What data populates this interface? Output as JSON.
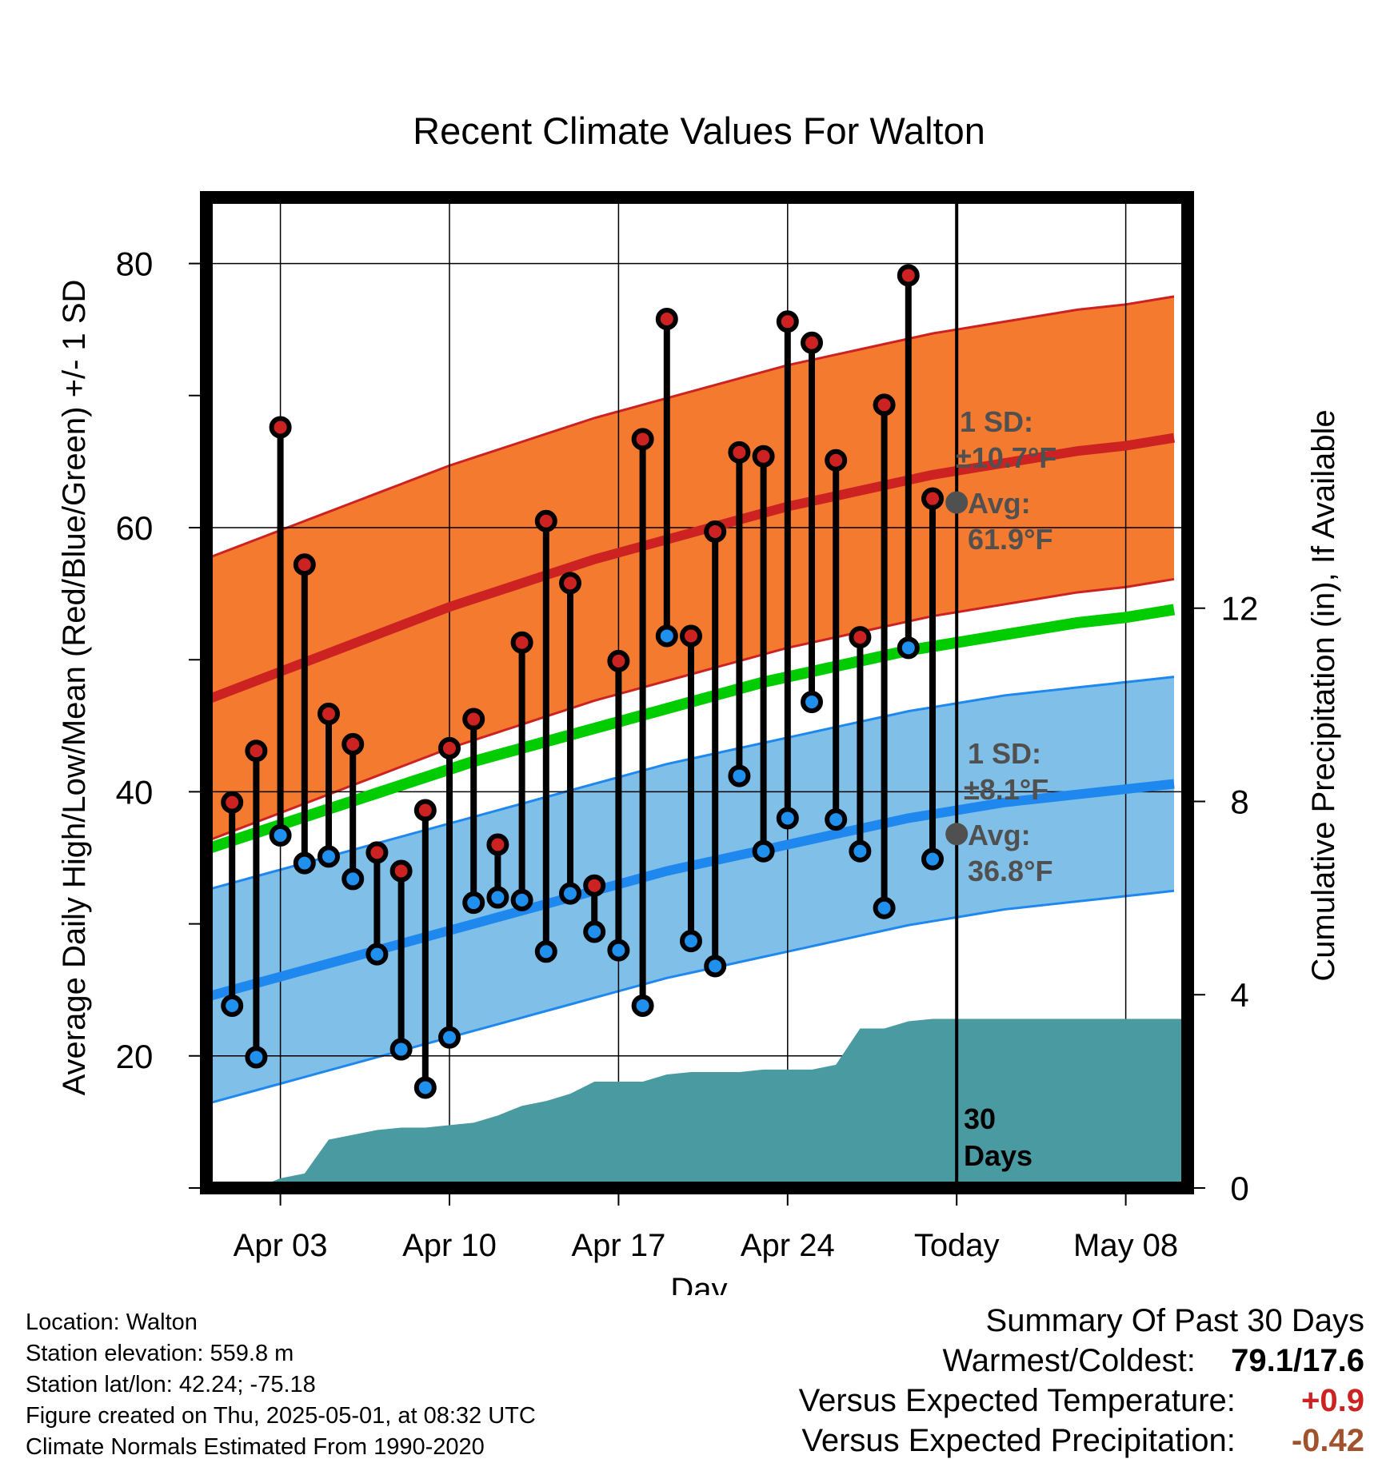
{
  "chart_data": {
    "type": "line",
    "title": "Recent Climate Values For Walton",
    "xlabel": "Day",
    "ylabel": "Average Daily High/Low/Mean (Red/Blue/Green) +/- 1 SD",
    "y2label": "Cumulative Precipitation (in), If Available",
    "ylim": [
      10,
      85
    ],
    "y2lim": [
      0,
      20.5
    ],
    "yticks": [
      20,
      40,
      60,
      80
    ],
    "y2ticks": [
      0,
      4,
      8,
      12
    ],
    "x_tick_labels": [
      "Apr 03",
      "Apr 10",
      "Apr 17",
      "Apr 24",
      "Today",
      "May 08"
    ],
    "grid": true,
    "colors": {
      "high": "#cc2222",
      "low": "#1e88ee",
      "mean": "#00cc00",
      "high_band": "#f47a30",
      "low_band": "#80c0e8",
      "precip": "#4a9aa2",
      "marker_high": "#cc2222",
      "marker_low": "#2090ee",
      "annotation": "#505050"
    },
    "days": [
      "Mar 31",
      "Apr 01",
      "Apr 02",
      "Apr 03",
      "Apr 04",
      "Apr 05",
      "Apr 06",
      "Apr 07",
      "Apr 08",
      "Apr 09",
      "Apr 10",
      "Apr 11",
      "Apr 12",
      "Apr 13",
      "Apr 14",
      "Apr 15",
      "Apr 16",
      "Apr 17",
      "Apr 18",
      "Apr 19",
      "Apr 20",
      "Apr 21",
      "Apr 22",
      "Apr 23",
      "Apr 24",
      "Apr 25",
      "Apr 26",
      "Apr 27",
      "Apr 28",
      "Apr 29",
      "Apr 30"
    ],
    "series": [
      {
        "name": "Daily High",
        "values": [
          null,
          39.2,
          43.1,
          67.6,
          57.2,
          45.9,
          43.6,
          35.4,
          34.0,
          38.6,
          43.3,
          45.5,
          36.0,
          51.3,
          60.5,
          55.8,
          32.9,
          49.9,
          66.7,
          75.8,
          51.8,
          59.7,
          65.7,
          65.4,
          75.6,
          74.0,
          65.1,
          51.7,
          69.3,
          79.1,
          62.2
        ]
      },
      {
        "name": "Daily Low",
        "values": [
          null,
          23.8,
          19.9,
          36.7,
          34.6,
          35.1,
          33.4,
          27.7,
          20.5,
          17.6,
          21.4,
          31.6,
          32.0,
          31.8,
          27.9,
          32.3,
          29.4,
          28.0,
          23.8,
          51.8,
          28.7,
          26.8,
          41.2,
          35.5,
          38.0,
          46.8,
          37.9,
          35.5,
          31.2,
          50.9,
          34.9
        ]
      },
      {
        "name": "Normal High",
        "values": [
          47,
          47.7,
          48.4,
          49.1,
          49.8,
          50.5,
          51.2,
          51.9,
          52.6,
          53.3,
          54.0,
          54.6,
          55.2,
          55.8,
          56.4,
          57.0,
          57.6,
          58.1,
          58.6,
          59.1,
          59.6,
          60.1,
          60.6,
          61.1,
          61.6,
          62.0,
          62.4,
          62.8,
          63.2,
          63.6,
          64.0
        ]
      },
      {
        "name": "Normal Low",
        "values": [
          24.5,
          25.0,
          25.5,
          26.0,
          26.5,
          27.0,
          27.5,
          28.0,
          28.5,
          29.0,
          29.5,
          30.0,
          30.5,
          31.0,
          31.5,
          32.0,
          32.5,
          33.0,
          33.5,
          34.0,
          34.4,
          34.8,
          35.2,
          35.6,
          36.0,
          36.4,
          36.8,
          37.2,
          37.6,
          38.0,
          38.3
        ]
      },
      {
        "name": "Normal Mean",
        "values": [
          35.7,
          36.3,
          36.9,
          37.5,
          38.1,
          38.7,
          39.3,
          39.9,
          40.5,
          41.1,
          41.7,
          42.3,
          42.8,
          43.3,
          43.8,
          44.3,
          44.8,
          45.3,
          45.8,
          46.3,
          46.8,
          47.3,
          47.8,
          48.3,
          48.7,
          49.1,
          49.5,
          49.9,
          50.3,
          50.7,
          51.0
        ]
      },
      {
        "name": "Cumulative Precipitation",
        "values": [
          0.0,
          0.0,
          0.0,
          0.2,
          0.3,
          1.0,
          1.1,
          1.2,
          1.25,
          1.25,
          1.3,
          1.35,
          1.5,
          1.7,
          1.8,
          1.95,
          2.2,
          2.2,
          2.2,
          2.35,
          2.4,
          2.4,
          2.4,
          2.45,
          2.45,
          2.45,
          2.55,
          3.3,
          3.3,
          3.45,
          3.5
        ]
      }
    ],
    "forecast_days": [
      "May 01",
      "May 02",
      "May 03",
      "May 04",
      "May 05",
      "May 06",
      "May 07",
      "May 08",
      "May 09",
      "May 10"
    ],
    "forecast_normals": {
      "high": [
        64.3,
        64.6,
        64.9,
        65.2,
        65.5,
        65.8,
        66.0,
        66.2,
        66.5,
        66.8
      ],
      "low": [
        38.6,
        38.9,
        39.2,
        39.4,
        39.6,
        39.8,
        40.0,
        40.2,
        40.4,
        40.6
      ],
      "mean": [
        51.3,
        51.6,
        51.9,
        52.2,
        52.5,
        52.8,
        53.0,
        53.2,
        53.5,
        53.8
      ]
    },
    "sd": {
      "high": 10.7,
      "low": 8.1
    },
    "annotations": {
      "high_sd_label": "1 SD:",
      "high_sd_value": "±10.7°F",
      "high_avg_label": "Avg:",
      "high_avg_value": "61.9°F",
      "low_sd_label": "1 SD:",
      "low_sd_value": "±8.1°F",
      "low_avg_label": "Avg:",
      "low_avg_value": "36.8°F",
      "days_label_1": "30",
      "days_label_2": "Days"
    }
  },
  "footer": {
    "location": "Location: Walton",
    "elevation": "Station elevation: 559.8 m",
    "latlon": "Station lat/lon: 42.24; -75.18",
    "created": "Figure created on Thu, 2025-05-01, at 08:32 UTC",
    "normals": "Climate Normals Estimated From 1990-2020"
  },
  "summary": {
    "heading": "Summary Of Past 30 Days",
    "warmest_label": "Warmest/Coldest:",
    "warmest_value": "79.1/17.6",
    "temp_label": "Versus Expected Temperature:",
    "temp_value": "+0.9",
    "precip_label": "Versus Expected Precipitation:",
    "precip_value": "-0.42",
    "temp_color": "#cc2222",
    "precip_color": "#a0522d"
  }
}
